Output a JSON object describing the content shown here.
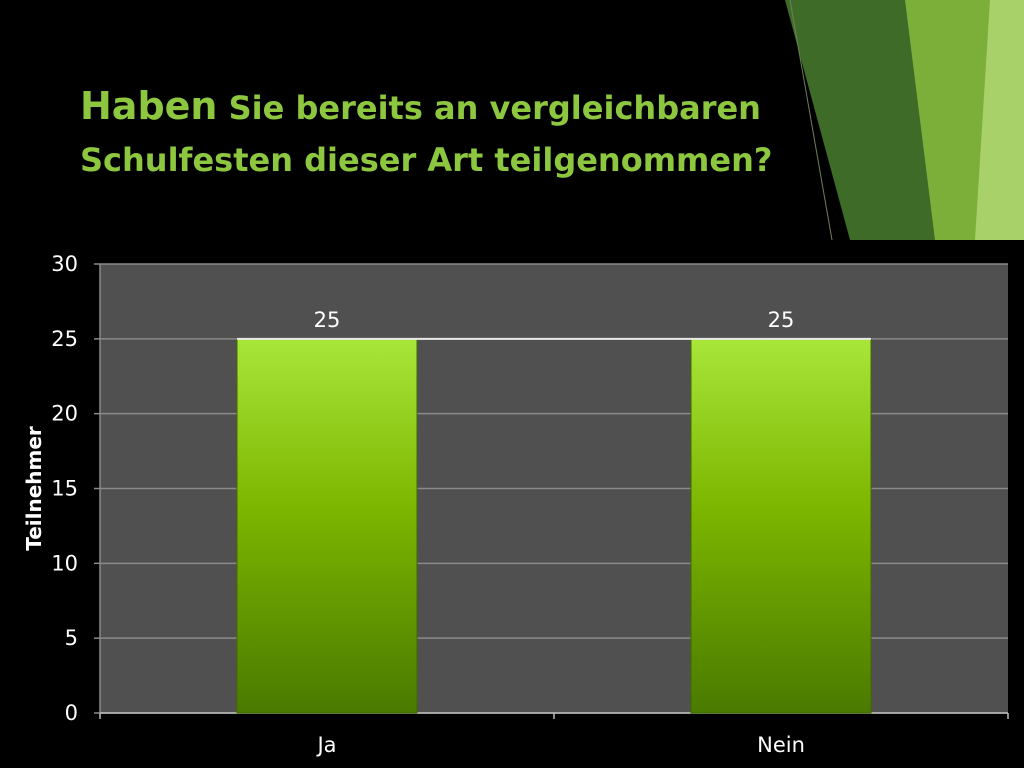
{
  "slide": {
    "title_first_word": "Haben",
    "title_rest": " Sie bereits an vergleichbaren Schulfesten dieser Art teilgenommen?"
  },
  "colors": {
    "background": "#000000",
    "title": "#8DC63F",
    "plot_area": "#505050",
    "grid": "#8A8A8A",
    "bar_top": "#A8E63A",
    "bar_mid": "#7DB600",
    "bar_bottom": "#4A7A00",
    "axis_text": "#FFFFFF"
  },
  "chart_data": {
    "type": "bar",
    "title": "",
    "xlabel": "",
    "ylabel": "Teilnehmer",
    "categories": [
      "Ja",
      "Nein"
    ],
    "values": [
      25,
      25
    ],
    "data_labels": [
      "25",
      "25"
    ],
    "ylim": [
      0,
      30
    ],
    "yticks": [
      0,
      5,
      10,
      15,
      20,
      25,
      30
    ],
    "grid": true,
    "legend": "none"
  }
}
